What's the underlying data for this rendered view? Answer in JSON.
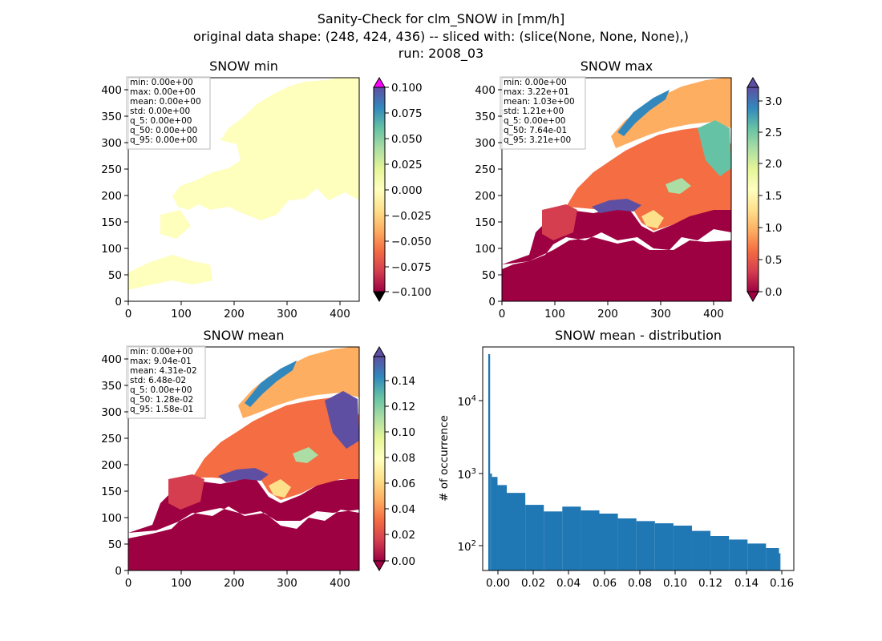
{
  "figure": {
    "title_lines": [
      "Sanity-Check for clm_SNOW in [mm/h]",
      "original data shape: (248, 424, 436) -- sliced with: (slice(None, None, None),)",
      "run: 2008_03"
    ]
  },
  "panels": {
    "min": {
      "title": "SNOW min",
      "stats": [
        "min: 0.00e+00",
        "max: 0.00e+00",
        "mean: 0.00e+00",
        "std: 0.00e+00",
        "q_5: 0.00e+00",
        "q_50: 0.00e+00",
        "q_95: 0.00e+00"
      ],
      "xticks": [
        "0",
        "100",
        "200",
        "300",
        "400"
      ],
      "yticks": [
        "0",
        "50",
        "100",
        "150",
        "200",
        "250",
        "300",
        "350",
        "400"
      ],
      "cbar_ticks": [
        "0.100",
        "0.075",
        "0.050",
        "0.025",
        "0.000",
        "−0.025",
        "−0.050",
        "−0.075",
        "−0.100"
      ]
    },
    "max": {
      "title": "SNOW max",
      "stats": [
        "min: 0.00e+00",
        "max: 3.22e+01",
        "mean: 1.03e+00",
        "std: 1.21e+00",
        "q_5: 0.00e+00",
        "q_50: 7.64e-01",
        "q_95: 3.21e+00"
      ],
      "xticks": [
        "0",
        "100",
        "200",
        "300",
        "400"
      ],
      "yticks": [
        "0",
        "50",
        "100",
        "150",
        "200",
        "250",
        "300",
        "350",
        "400"
      ],
      "cbar_ticks": [
        "3.0",
        "2.5",
        "2.0",
        "1.5",
        "1.0",
        "0.5",
        "0.0"
      ]
    },
    "mean": {
      "title": "SNOW mean",
      "stats": [
        "min: 0.00e+00",
        "max: 9.04e-01",
        "mean: 4.31e-02",
        "std: 6.48e-02",
        "q_5: 0.00e+00",
        "q_50: 1.28e-02",
        "q_95: 1.58e-01"
      ],
      "xticks": [
        "0",
        "100",
        "200",
        "300",
        "400"
      ],
      "yticks": [
        "0",
        "50",
        "100",
        "150",
        "200",
        "250",
        "300",
        "350",
        "400"
      ],
      "cbar_ticks": [
        "0.14",
        "0.12",
        "0.10",
        "0.08",
        "0.06",
        "0.04",
        "0.02",
        "0.00"
      ]
    },
    "dist": {
      "title": "SNOW mean - distribution",
      "ylabel": "# of occurrence",
      "xticks": [
        "0.00",
        "0.02",
        "0.04",
        "0.06",
        "0.08",
        "0.10",
        "0.12",
        "0.14",
        "0.16"
      ]
    }
  },
  "colors": {
    "bar": "#1f77b4",
    "min_map_fill": "#fefebd",
    "cbar_over_min": "#ff00ff",
    "cbar_under": "#000000"
  },
  "chart_data": [
    {
      "type": "heatmap",
      "title": "SNOW min",
      "xlim": [
        0,
        436
      ],
      "ylim": [
        0,
        424
      ],
      "vmin": -0.1,
      "vmax": 0.1,
      "colormap": "Spectral"
    },
    {
      "type": "heatmap",
      "title": "SNOW max",
      "xlim": [
        0,
        436
      ],
      "ylim": [
        0,
        424
      ],
      "vmin": 0.0,
      "vmax": 3.3,
      "colormap": "Spectral"
    },
    {
      "type": "heatmap",
      "title": "SNOW mean",
      "xlim": [
        0,
        436
      ],
      "ylim": [
        0,
        424
      ],
      "vmin": 0.0,
      "vmax": 0.16,
      "colormap": "Spectral"
    },
    {
      "type": "bar",
      "title": "SNOW mean - distribution",
      "ylabel": "# of occurrence",
      "xlim": [
        -0.003,
        0.165
      ],
      "ylim": [
        50,
        50000
      ],
      "yscale": "log",
      "bin_width": 0.00079,
      "x": [
        0.0,
        0.001,
        0.002,
        0.005,
        0.01,
        0.02,
        0.03,
        0.04,
        0.05,
        0.06,
        0.07,
        0.08,
        0.09,
        0.1,
        0.11,
        0.12,
        0.13,
        0.14,
        0.15,
        0.157
      ],
      "values": [
        40000,
        1000,
        900,
        700,
        550,
        380,
        310,
        360,
        320,
        290,
        250,
        230,
        215,
        200,
        170,
        145,
        130,
        115,
        100,
        85
      ]
    }
  ]
}
